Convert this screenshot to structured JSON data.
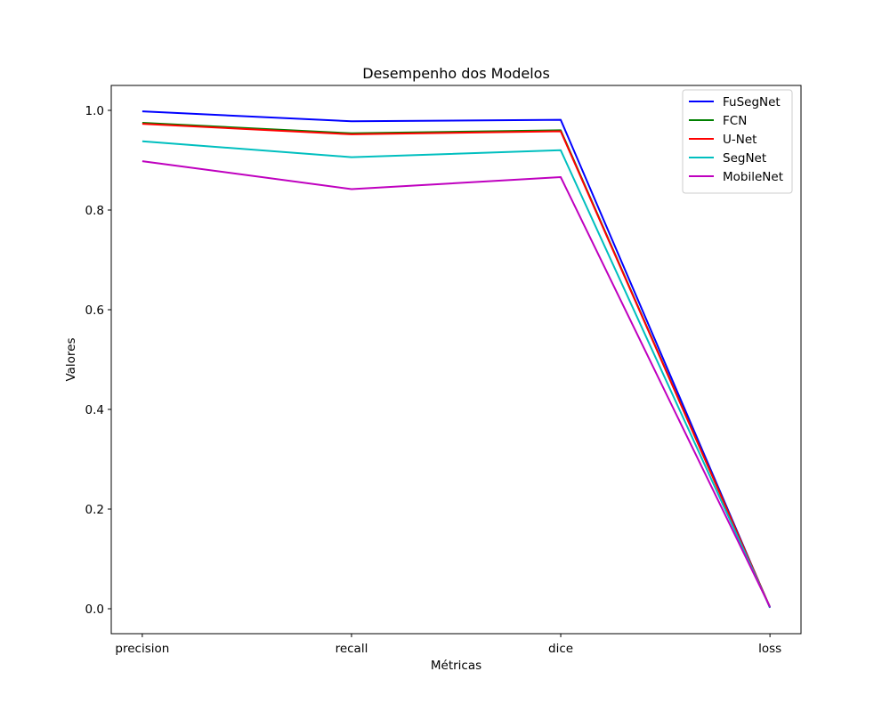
{
  "chart_data": {
    "type": "line",
    "title": "Desempenho dos Modelos",
    "xlabel": "Métricas",
    "ylabel": "Valores",
    "categories": [
      "precision",
      "recall",
      "dice",
      "loss"
    ],
    "ylim": [
      -0.05,
      1.05
    ],
    "yticks": [
      0.0,
      0.2,
      0.4,
      0.6,
      0.8,
      1.0
    ],
    "ytick_labels": [
      "0.0",
      "0.2",
      "0.4",
      "0.6",
      "0.8",
      "1.0"
    ],
    "grid": false,
    "legend_position": "top-right",
    "series": [
      {
        "name": "FuSegNet",
        "color": "#0000ff",
        "values": [
          0.998,
          0.978,
          0.981,
          0.002
        ]
      },
      {
        "name": "FCN",
        "color": "#008000",
        "values": [
          0.975,
          0.954,
          0.96,
          0.003
        ]
      },
      {
        "name": "U-Net",
        "color": "#ff0000",
        "values": [
          0.973,
          0.952,
          0.958,
          0.003
        ]
      },
      {
        "name": "SegNet",
        "color": "#00bfbf",
        "values": [
          0.938,
          0.906,
          0.92,
          0.003
        ]
      },
      {
        "name": "MobileNet",
        "color": "#bf00bf",
        "values": [
          0.898,
          0.842,
          0.866,
          0.004
        ]
      }
    ]
  }
}
